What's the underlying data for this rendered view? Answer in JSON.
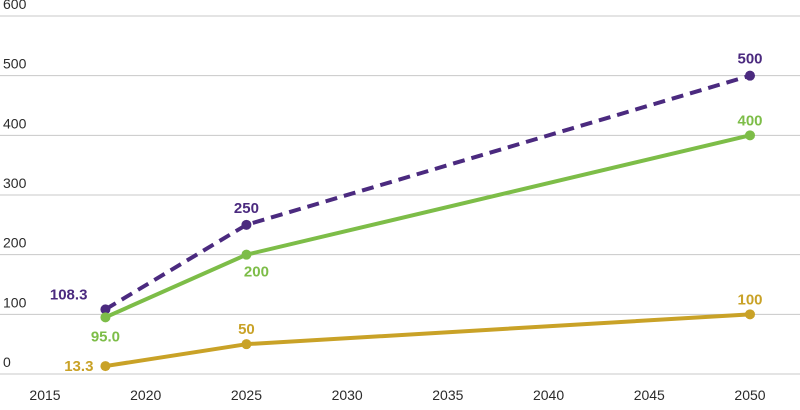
{
  "chart_data": {
    "type": "line",
    "title": "",
    "xlabel": "",
    "ylabel": "",
    "xlim": [
      2015,
      2050
    ],
    "ylim": [
      0,
      600
    ],
    "x_ticks": [
      "2015",
      "2020",
      "2025",
      "2030",
      "2035",
      "2040",
      "2045",
      "2050"
    ],
    "y_ticks": [
      "0",
      "100",
      "200",
      "300",
      "400",
      "500",
      "600"
    ],
    "grid": "horizontal",
    "legend": "none",
    "series": [
      {
        "color": "#4b2a7f",
        "line_style": "dashed",
        "points": [
          {
            "x": 2018,
            "y": 108.3,
            "label": "108.3"
          },
          {
            "x": 2025,
            "y": 250,
            "label": "250"
          },
          {
            "x": 2050,
            "y": 500,
            "label": "500"
          }
        ]
      },
      {
        "color": "#7dbd48",
        "line_style": "solid",
        "points": [
          {
            "x": 2018,
            "y": 95.0,
            "label": "95.0"
          },
          {
            "x": 2025,
            "y": 200,
            "label": "200"
          },
          {
            "x": 2050,
            "y": 400,
            "label": "400"
          }
        ]
      },
      {
        "color": "#c9a227",
        "line_style": "solid",
        "points": [
          {
            "x": 2018,
            "y": 13.3,
            "label": "13.3"
          },
          {
            "x": 2025,
            "y": 50,
            "label": "50"
          },
          {
            "x": 2050,
            "y": 100,
            "label": "100"
          }
        ]
      }
    ]
  }
}
